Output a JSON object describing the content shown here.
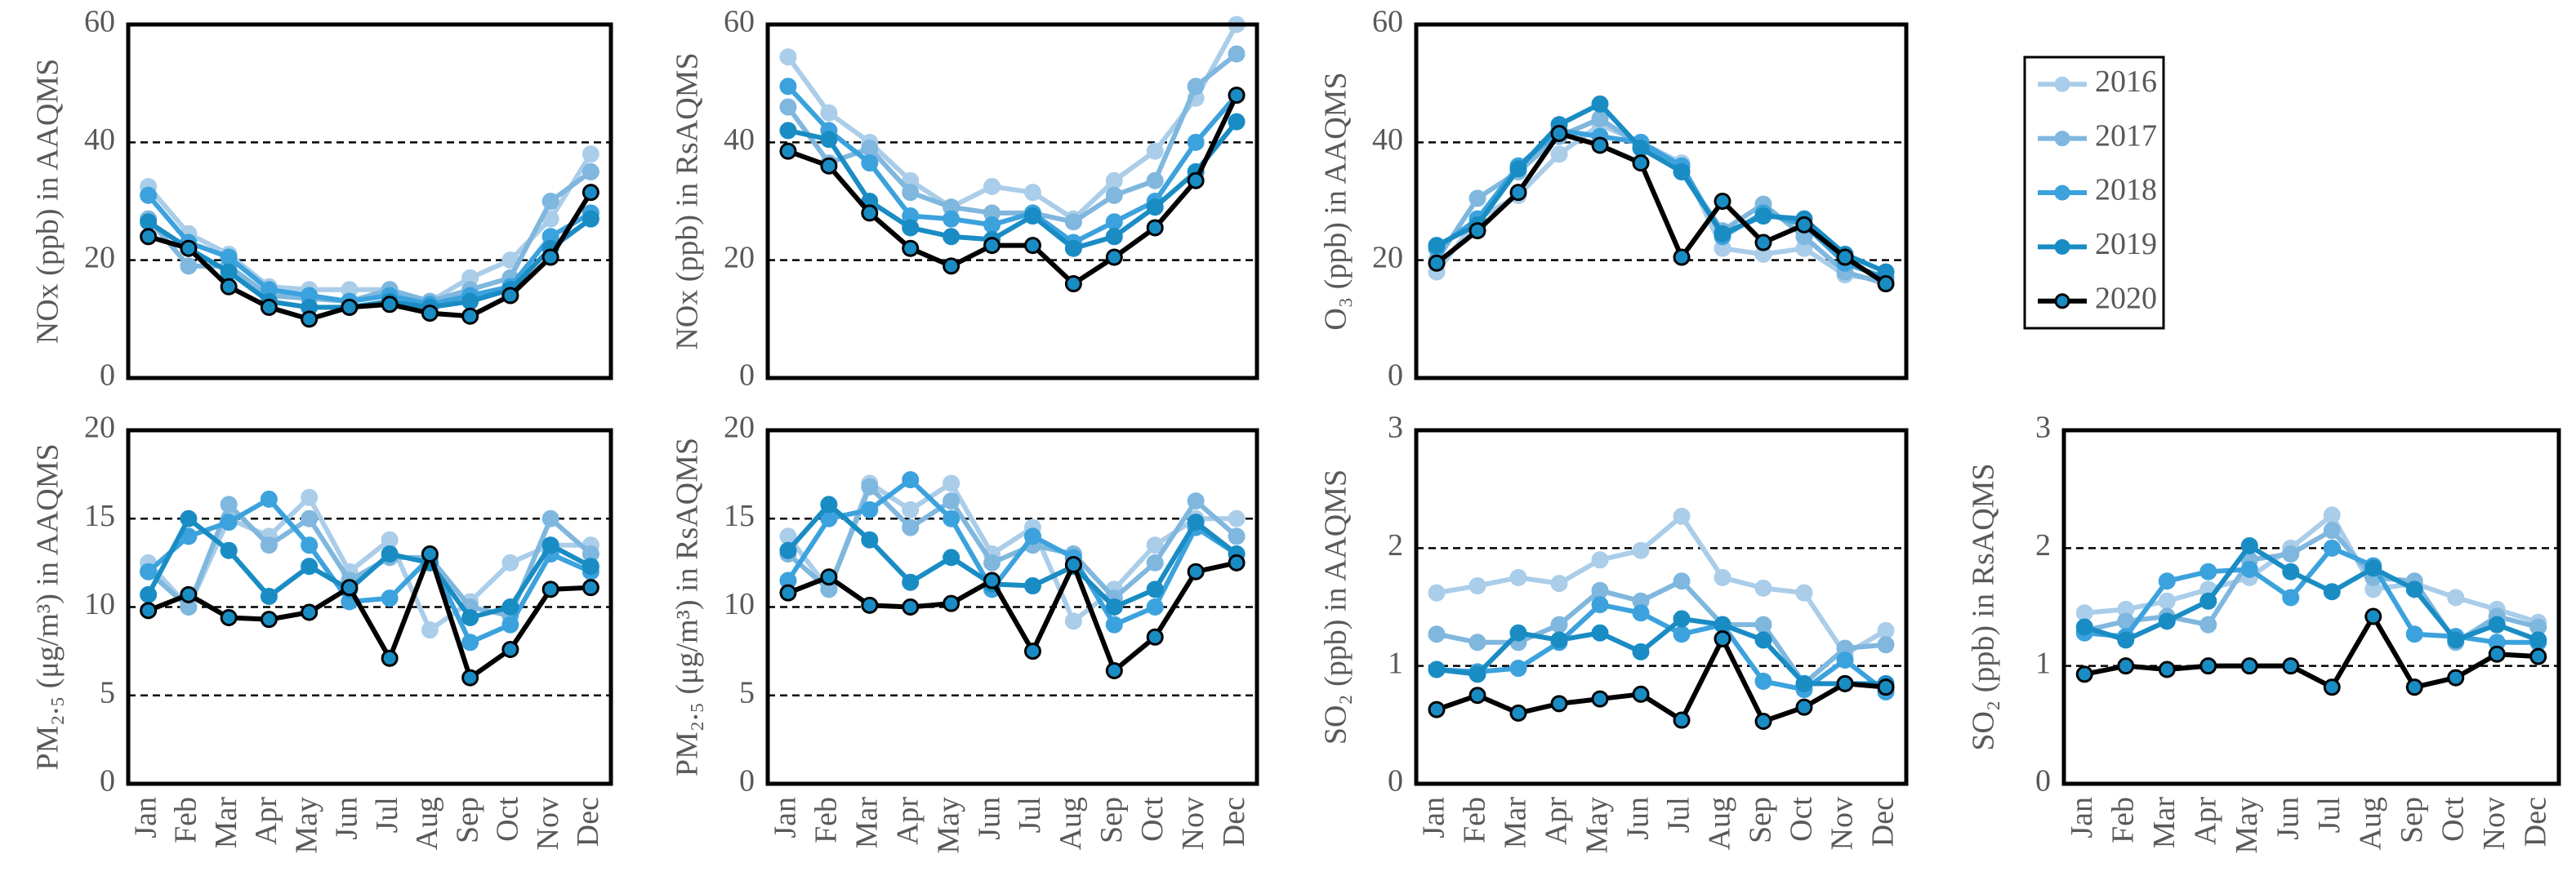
{
  "chart_data": [
    {
      "type": "line",
      "y_label": "NOx (ppb) in AAQMS",
      "ylim": [
        0,
        60
      ],
      "yticks": [
        0,
        20,
        40,
        60
      ],
      "grid": "dashed",
      "legend": "outside-right",
      "series": [
        {
          "name": "2016",
          "color": "#aacde9",
          "values": [
            32.5,
            24.5,
            21,
            15.5,
            15,
            15,
            15,
            13,
            17,
            20,
            27,
            38
          ]
        },
        {
          "name": "2017",
          "color": "#7fb7de",
          "values": [
            27,
            19,
            19,
            14,
            13.5,
            13,
            15,
            13,
            15,
            17,
            30,
            35
          ]
        },
        {
          "name": "2018",
          "color": "#3ca2dd",
          "values": [
            31,
            23,
            20.5,
            15,
            14,
            13,
            14,
            12.5,
            14,
            15.5,
            24,
            28
          ]
        },
        {
          "name": "2019",
          "color": "#1a8cc4",
          "values": [
            26.5,
            22,
            18,
            13,
            12,
            12,
            13,
            12,
            13,
            15,
            22,
            27
          ]
        },
        {
          "name": "2020",
          "color": "#000000",
          "marker_fill": "#1a8cc4",
          "values": [
            24,
            22,
            15.5,
            12,
            10,
            12,
            12.5,
            11,
            10.5,
            14,
            20.5,
            31.5
          ]
        }
      ]
    },
    {
      "type": "line",
      "y_label": "NOx (ppb) in RsAQMS",
      "ylim": [
        0,
        60
      ],
      "yticks": [
        0,
        20,
        40,
        60
      ],
      "grid": "dashed",
      "series": [
        {
          "color": "#aacde9",
          "values": [
            54.5,
            45,
            40,
            33.5,
            29,
            32.5,
            31.5,
            27,
            33.5,
            38.5,
            47.5,
            60
          ]
        },
        {
          "color": "#7fb7de",
          "values": [
            46,
            36.5,
            39,
            31.5,
            29,
            28,
            28,
            26.5,
            31,
            33.5,
            49.5,
            55
          ]
        },
        {
          "color": "#3ca2dd",
          "values": [
            49.5,
            42,
            36.5,
            27.5,
            27,
            26,
            28,
            23,
            26.5,
            30,
            40,
            48
          ]
        },
        {
          "color": "#1a8cc4",
          "values": [
            42,
            40.5,
            30,
            25.5,
            24,
            23.5,
            27.5,
            22,
            24,
            29,
            35,
            43.5
          ]
        },
        {
          "color": "#000000",
          "marker_fill": "#1a8cc4",
          "values": [
            38.5,
            36,
            28,
            22,
            19,
            22.5,
            22.5,
            16,
            20.5,
            25.5,
            33.5,
            48
          ]
        }
      ]
    },
    {
      "type": "line",
      "y_label": "O₃ (ppb) in AAQMS",
      "ylim": [
        0,
        60
      ],
      "yticks": [
        0,
        20,
        40,
        60
      ],
      "grid": "dashed",
      "series": [
        {
          "color": "#aacde9",
          "values": [
            18,
            27,
            31,
            38,
            43,
            40,
            36.5,
            22,
            21,
            22,
            17.5,
            16.5
          ]
        },
        {
          "color": "#7fb7de",
          "values": [
            20,
            30.5,
            35,
            41,
            44,
            39.5,
            35,
            25,
            29.5,
            24,
            18,
            16
          ]
        },
        {
          "color": "#3ca2dd",
          "values": [
            22,
            27,
            36,
            42,
            41,
            40,
            36,
            24,
            28,
            26,
            19.5,
            17
          ]
        },
        {
          "color": "#1a8cc4",
          "values": [
            22.5,
            26,
            35.5,
            43,
            46.5,
            39,
            35,
            24.5,
            27.5,
            27,
            21,
            18
          ]
        },
        {
          "color": "#000000",
          "marker_fill": "#1a8cc4",
          "values": [
            19.5,
            25,
            31.5,
            41.5,
            39.5,
            36.5,
            20.5,
            30,
            23,
            26,
            20.5,
            16
          ]
        }
      ]
    },
    {
      "type": "line",
      "y_label": "PM₂.₅ (μg/m³) in AAQMS",
      "ylim": [
        0,
        20
      ],
      "yticks": [
        0,
        5,
        10,
        15,
        20
      ],
      "grid": "dashed",
      "categories": [
        "Jan",
        "Feb",
        "Mar",
        "Apr",
        "May",
        "Jun",
        "Jul",
        "Aug",
        "Sep",
        "Oct",
        "Nov",
        "Dec"
      ],
      "series": [
        {
          "color": "#aacde9",
          "values": [
            12.5,
            10,
            15,
            14,
            16.2,
            12,
            13.8,
            8.7,
            10.3,
            12.5,
            13.5,
            13.5
          ]
        },
        {
          "color": "#7fb7de",
          "values": [
            12,
            10,
            15.8,
            13.5,
            15,
            11.5,
            12.8,
            12.8,
            10,
            9.5,
            15,
            13
          ]
        },
        {
          "color": "#3ca2dd",
          "values": [
            12,
            14,
            14.8,
            16.1,
            13.5,
            10.3,
            10.5,
            12.8,
            8,
            9,
            13,
            12
          ]
        },
        {
          "color": "#1a8cc4",
          "values": [
            10.7,
            15,
            13.2,
            10.6,
            12.3,
            11,
            13,
            12.5,
            9.4,
            10,
            13.5,
            12.3
          ]
        },
        {
          "color": "#000000",
          "marker_fill": "#1a8cc4",
          "values": [
            9.8,
            10.7,
            9.4,
            9.3,
            9.7,
            11.1,
            7.1,
            13,
            6,
            7.6,
            11,
            11.1
          ]
        }
      ]
    },
    {
      "type": "line",
      "y_label": "PM₂.₅ (μg/m³) in RsAQMS",
      "ylim": [
        0,
        20
      ],
      "yticks": [
        0,
        5,
        10,
        15,
        20
      ],
      "grid": "dashed",
      "categories": [
        "Jan",
        "Feb",
        "Mar",
        "Apr",
        "May",
        "Jun",
        "Jul",
        "Aug",
        "Sep",
        "Oct",
        "Nov",
        "Dec"
      ],
      "series": [
        {
          "color": "#aacde9",
          "values": [
            14,
            11,
            17,
            15.5,
            17,
            13,
            14.5,
            9.2,
            11,
            13.5,
            15,
            15
          ]
        },
        {
          "color": "#7fb7de",
          "values": [
            13,
            11,
            16.8,
            14.5,
            16,
            12.5,
            13.5,
            13,
            10.5,
            12.5,
            16,
            14
          ]
        },
        {
          "color": "#3ca2dd",
          "values": [
            11.5,
            15,
            15.5,
            17.2,
            15,
            11,
            14,
            12.8,
            9,
            10,
            14.5,
            13
          ]
        },
        {
          "color": "#1a8cc4",
          "values": [
            13.2,
            15.8,
            13.8,
            11.4,
            12.8,
            11.3,
            11.2,
            12.3,
            10,
            11,
            14.8,
            13
          ]
        },
        {
          "color": "#000000",
          "marker_fill": "#1a8cc4",
          "values": [
            10.8,
            11.7,
            10.1,
            10,
            10.2,
            11.5,
            7.5,
            12.4,
            6.4,
            8.3,
            12,
            12.5
          ]
        }
      ]
    },
    {
      "type": "line",
      "y_label": "SO₂ (ppb) in AAQMS",
      "ylim": [
        0,
        3
      ],
      "yticks": [
        0,
        1,
        2,
        3
      ],
      "grid": "dashed",
      "categories": [
        "Jan",
        "Feb",
        "Mar",
        "Apr",
        "May",
        "Jun",
        "Jul",
        "Aug",
        "Sep",
        "Oct",
        "Nov",
        "Dec"
      ],
      "series": [
        {
          "color": "#aacde9",
          "values": [
            1.62,
            1.68,
            1.75,
            1.7,
            1.9,
            1.98,
            2.27,
            1.75,
            1.66,
            1.62,
            1.1,
            1.3
          ]
        },
        {
          "color": "#7fb7de",
          "values": [
            1.27,
            1.2,
            1.2,
            1.35,
            1.64,
            1.55,
            1.72,
            1.35,
            1.35,
            0.85,
            1.15,
            1.18
          ]
        },
        {
          "color": "#3ca2dd",
          "values": [
            0.97,
            0.95,
            0.98,
            1.2,
            1.52,
            1.45,
            1.27,
            1.35,
            0.87,
            0.8,
            1.05,
            0.78
          ]
        },
        {
          "color": "#1a8cc4",
          "values": [
            0.97,
            0.93,
            1.28,
            1.22,
            1.28,
            1.12,
            1.4,
            1.35,
            1.22,
            0.85,
            0.85,
            0.85
          ]
        },
        {
          "color": "#000000",
          "marker_fill": "#1a8cc4",
          "values": [
            0.63,
            0.75,
            0.6,
            0.68,
            0.72,
            0.76,
            0.54,
            1.23,
            0.53,
            0.65,
            0.85,
            0.82
          ]
        }
      ]
    },
    {
      "type": "line",
      "y_label": "SO₂ (ppb) in RsAQMS",
      "ylim": [
        0,
        3
      ],
      "yticks": [
        0,
        1,
        2,
        3
      ],
      "grid": "dashed",
      "categories": [
        "Jan",
        "Feb",
        "Mar",
        "Apr",
        "May",
        "Jun",
        "Jul",
        "Aug",
        "Sep",
        "Oct",
        "Nov",
        "Dec"
      ],
      "series": [
        {
          "color": "#aacde9",
          "values": [
            1.45,
            1.48,
            1.55,
            1.65,
            1.75,
            2.0,
            2.28,
            1.65,
            1.7,
            1.58,
            1.48,
            1.37
          ]
        },
        {
          "color": "#7fb7de",
          "values": [
            1.3,
            1.38,
            1.42,
            1.35,
            1.9,
            1.95,
            2.15,
            1.75,
            1.72,
            1.2,
            1.42,
            1.33
          ]
        },
        {
          "color": "#3ca2dd",
          "values": [
            1.28,
            1.25,
            1.72,
            1.8,
            1.82,
            1.58,
            2.0,
            1.85,
            1.27,
            1.25,
            1.2,
            1.2
          ]
        },
        {
          "color": "#1a8cc4",
          "values": [
            1.33,
            1.22,
            1.38,
            1.55,
            2.02,
            1.8,
            1.63,
            1.83,
            1.65,
            1.22,
            1.35,
            1.22
          ]
        },
        {
          "color": "#000000",
          "marker_fill": "#1a8cc4",
          "values": [
            0.93,
            1.0,
            0.97,
            1.0,
            1.0,
            1.0,
            0.82,
            1.42,
            0.82,
            0.9,
            1.1,
            1.08
          ]
        }
      ]
    }
  ]
}
